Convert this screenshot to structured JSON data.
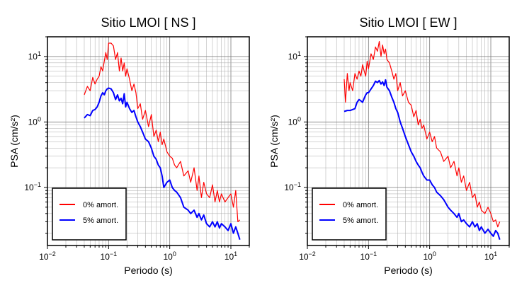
{
  "chart_data": [
    {
      "type": "line",
      "title": "Sitio LMOI [ NS ]",
      "xlabel": "Periodo (s)",
      "ylabel": "PSA (cm/s²)",
      "xscale": "log",
      "yscale": "log",
      "xlim": [
        0.01,
        20
      ],
      "ylim": [
        0.013,
        20
      ],
      "xticks": [
        {
          "value": 0.01,
          "base": "10",
          "exp": "−2"
        },
        {
          "value": 0.1,
          "base": "10",
          "exp": "−1"
        },
        {
          "value": 1,
          "base": "10",
          "exp": "0"
        },
        {
          "value": 10,
          "base": "10",
          "exp": "1"
        }
      ],
      "yticks": [
        {
          "value": 0.1,
          "base": "10",
          "exp": "−1"
        },
        {
          "value": 1,
          "base": "10",
          "exp": "0"
        },
        {
          "value": 10,
          "base": "10",
          "exp": "1"
        }
      ],
      "grid": true,
      "legend_position": "bottom-left",
      "series": [
        {
          "name": "0% amort.",
          "color": "#ff0000",
          "x": [
            0.04,
            0.045,
            0.05,
            0.055,
            0.06,
            0.065,
            0.07,
            0.075,
            0.08,
            0.085,
            0.09,
            0.095,
            0.1,
            0.11,
            0.12,
            0.13,
            0.14,
            0.15,
            0.16,
            0.17,
            0.18,
            0.19,
            0.2,
            0.22,
            0.24,
            0.26,
            0.28,
            0.3,
            0.33,
            0.36,
            0.4,
            0.45,
            0.5,
            0.55,
            0.6,
            0.65,
            0.7,
            0.75,
            0.8,
            0.9,
            1.0,
            1.1,
            1.2,
            1.3,
            1.5,
            1.7,
            2.0,
            2.2,
            2.5,
            2.8,
            3.0,
            3.3,
            3.6,
            4.0,
            4.5,
            5.0,
            5.5,
            6.0,
            6.5,
            7.0,
            8.0,
            9.0,
            10.0,
            11.0,
            12.0,
            13.0,
            14.0
          ],
          "y": [
            2.6,
            3.5,
            3.0,
            4.8,
            3.8,
            4.5,
            5.0,
            7.0,
            6.0,
            8.5,
            11.5,
            9.0,
            16.0,
            16.0,
            14.5,
            9.0,
            11.5,
            6.0,
            9.5,
            6.0,
            8.0,
            5.0,
            6.5,
            4.5,
            3.0,
            3.8,
            2.8,
            1.6,
            1.9,
            1.1,
            1.5,
            0.85,
            1.3,
            0.6,
            0.75,
            0.5,
            0.7,
            0.45,
            0.55,
            0.35,
            0.3,
            0.28,
            0.22,
            0.2,
            0.25,
            0.15,
            0.18,
            0.12,
            0.2,
            0.09,
            0.15,
            0.07,
            0.12,
            0.08,
            0.07,
            0.11,
            0.06,
            0.09,
            0.06,
            0.08,
            0.06,
            0.07,
            0.08,
            0.05,
            0.09,
            0.03,
            0.032
          ]
        },
        {
          "name": "5% amort.",
          "color": "#0000ff",
          "x": [
            0.04,
            0.045,
            0.05,
            0.055,
            0.06,
            0.065,
            0.07,
            0.075,
            0.08,
            0.085,
            0.09,
            0.095,
            0.1,
            0.11,
            0.12,
            0.13,
            0.14,
            0.15,
            0.16,
            0.17,
            0.18,
            0.19,
            0.2,
            0.22,
            0.24,
            0.26,
            0.28,
            0.3,
            0.33,
            0.36,
            0.4,
            0.45,
            0.5,
            0.55,
            0.6,
            0.65,
            0.7,
            0.75,
            0.8,
            0.9,
            1.0,
            1.1,
            1.2,
            1.3,
            1.5,
            1.7,
            2.0,
            2.2,
            2.5,
            2.8,
            3.0,
            3.3,
            3.6,
            4.0,
            4.5,
            5.0,
            5.5,
            6.0,
            6.5,
            7.0,
            8.0,
            9.0,
            10.0,
            11.0,
            12.0,
            13.0,
            14.0
          ],
          "y": [
            1.15,
            1.3,
            1.25,
            1.5,
            1.55,
            1.7,
            2.0,
            2.5,
            2.8,
            2.6,
            3.0,
            3.2,
            3.3,
            3.2,
            2.8,
            2.2,
            2.6,
            2.1,
            2.3,
            1.9,
            2.7,
            1.7,
            2.0,
            1.6,
            1.4,
            1.5,
            1.2,
            1.0,
            0.85,
            0.7,
            0.55,
            0.5,
            0.4,
            0.3,
            0.27,
            0.22,
            0.2,
            0.15,
            0.1,
            0.12,
            0.13,
            0.1,
            0.09,
            0.085,
            0.07,
            0.05,
            0.045,
            0.04,
            0.045,
            0.035,
            0.04,
            0.032,
            0.038,
            0.028,
            0.025,
            0.03,
            0.025,
            0.03,
            0.024,
            0.028,
            0.025,
            0.022,
            0.028,
            0.02,
            0.025,
            0.02,
            0.016
          ]
        }
      ]
    },
    {
      "type": "line",
      "title": "Sitio LMOI [ EW ]",
      "xlabel": "Periodo (s)",
      "ylabel": "PSA (cm/s²)",
      "xscale": "log",
      "yscale": "log",
      "xlim": [
        0.01,
        20
      ],
      "ylim": [
        0.013,
        20
      ],
      "xticks": [
        {
          "value": 0.01,
          "base": "10",
          "exp": "−2"
        },
        {
          "value": 0.1,
          "base": "10",
          "exp": "−1"
        },
        {
          "value": 1,
          "base": "10",
          "exp": "0"
        },
        {
          "value": 10,
          "base": "10",
          "exp": "1"
        }
      ],
      "yticks": [
        {
          "value": 0.1,
          "base": "10",
          "exp": "−1"
        },
        {
          "value": 1,
          "base": "10",
          "exp": "0"
        },
        {
          "value": 10,
          "base": "10",
          "exp": "1"
        }
      ],
      "grid": true,
      "legend_position": "bottom-left",
      "series": [
        {
          "name": "0% amort.",
          "color": "#ff0000",
          "x": [
            0.04,
            0.042,
            0.045,
            0.048,
            0.05,
            0.055,
            0.06,
            0.065,
            0.07,
            0.075,
            0.08,
            0.085,
            0.09,
            0.095,
            0.1,
            0.11,
            0.12,
            0.13,
            0.14,
            0.15,
            0.16,
            0.17,
            0.18,
            0.19,
            0.2,
            0.22,
            0.24,
            0.26,
            0.28,
            0.3,
            0.33,
            0.36,
            0.4,
            0.45,
            0.5,
            0.55,
            0.6,
            0.65,
            0.7,
            0.75,
            0.8,
            0.9,
            1.0,
            1.1,
            1.2,
            1.3,
            1.5,
            1.7,
            2.0,
            2.2,
            2.5,
            2.8,
            3.0,
            3.3,
            3.6,
            4.0,
            4.5,
            5.0,
            5.5,
            6.0,
            6.5,
            7.0,
            8.0,
            9.0,
            10.0,
            11.0,
            12.0,
            13.0,
            14.0
          ],
          "y": [
            4.5,
            2.0,
            5.5,
            3.0,
            4.0,
            3.0,
            5.5,
            4.5,
            6.0,
            5.0,
            7.5,
            6.0,
            5.0,
            8.5,
            6.5,
            11.0,
            9.0,
            14.0,
            12.0,
            17.0,
            10.0,
            15.0,
            11.0,
            13.0,
            9.0,
            8.0,
            6.0,
            4.5,
            5.5,
            3.0,
            4.0,
            2.5,
            3.0,
            2.0,
            1.8,
            1.2,
            1.5,
            0.9,
            1.1,
            0.8,
            0.9,
            0.55,
            0.7,
            0.5,
            0.6,
            0.4,
            0.35,
            0.25,
            0.3,
            0.2,
            0.25,
            0.15,
            0.2,
            0.12,
            0.15,
            0.09,
            0.12,
            0.07,
            0.08,
            0.05,
            0.06,
            0.045,
            0.04,
            0.05,
            0.04,
            0.03,
            0.032,
            0.025,
            0.03
          ]
        },
        {
          "name": "5% amort.",
          "color": "#0000ff",
          "x": [
            0.04,
            0.045,
            0.05,
            0.055,
            0.06,
            0.065,
            0.07,
            0.075,
            0.08,
            0.085,
            0.09,
            0.095,
            0.1,
            0.11,
            0.12,
            0.13,
            0.14,
            0.15,
            0.16,
            0.17,
            0.18,
            0.19,
            0.2,
            0.22,
            0.24,
            0.26,
            0.28,
            0.3,
            0.33,
            0.36,
            0.4,
            0.45,
            0.5,
            0.55,
            0.6,
            0.65,
            0.7,
            0.75,
            0.8,
            0.9,
            1.0,
            1.1,
            1.2,
            1.3,
            1.5,
            1.7,
            2.0,
            2.2,
            2.5,
            2.8,
            3.0,
            3.3,
            3.6,
            4.0,
            4.5,
            5.0,
            5.5,
            6.0,
            6.5,
            7.0,
            8.0,
            9.0,
            10.0,
            11.0,
            12.0,
            13.0,
            14.0
          ],
          "y": [
            1.45,
            1.5,
            1.5,
            1.55,
            1.6,
            2.0,
            2.2,
            2.1,
            2.0,
            2.3,
            2.6,
            2.8,
            2.8,
            3.2,
            3.6,
            4.2,
            4.0,
            4.3,
            3.8,
            4.1,
            3.6,
            4.4,
            3.4,
            3.0,
            2.4,
            2.0,
            1.6,
            1.4,
            1.0,
            0.8,
            0.6,
            0.45,
            0.35,
            0.3,
            0.25,
            0.22,
            0.2,
            0.17,
            0.15,
            0.13,
            0.13,
            0.11,
            0.1,
            0.085,
            0.075,
            0.065,
            0.05,
            0.045,
            0.04,
            0.035,
            0.04,
            0.03,
            0.032,
            0.028,
            0.025,
            0.03,
            0.025,
            0.028,
            0.022,
            0.025,
            0.02,
            0.023,
            0.02,
            0.018,
            0.022,
            0.02,
            0.016
          ]
        }
      ]
    }
  ]
}
